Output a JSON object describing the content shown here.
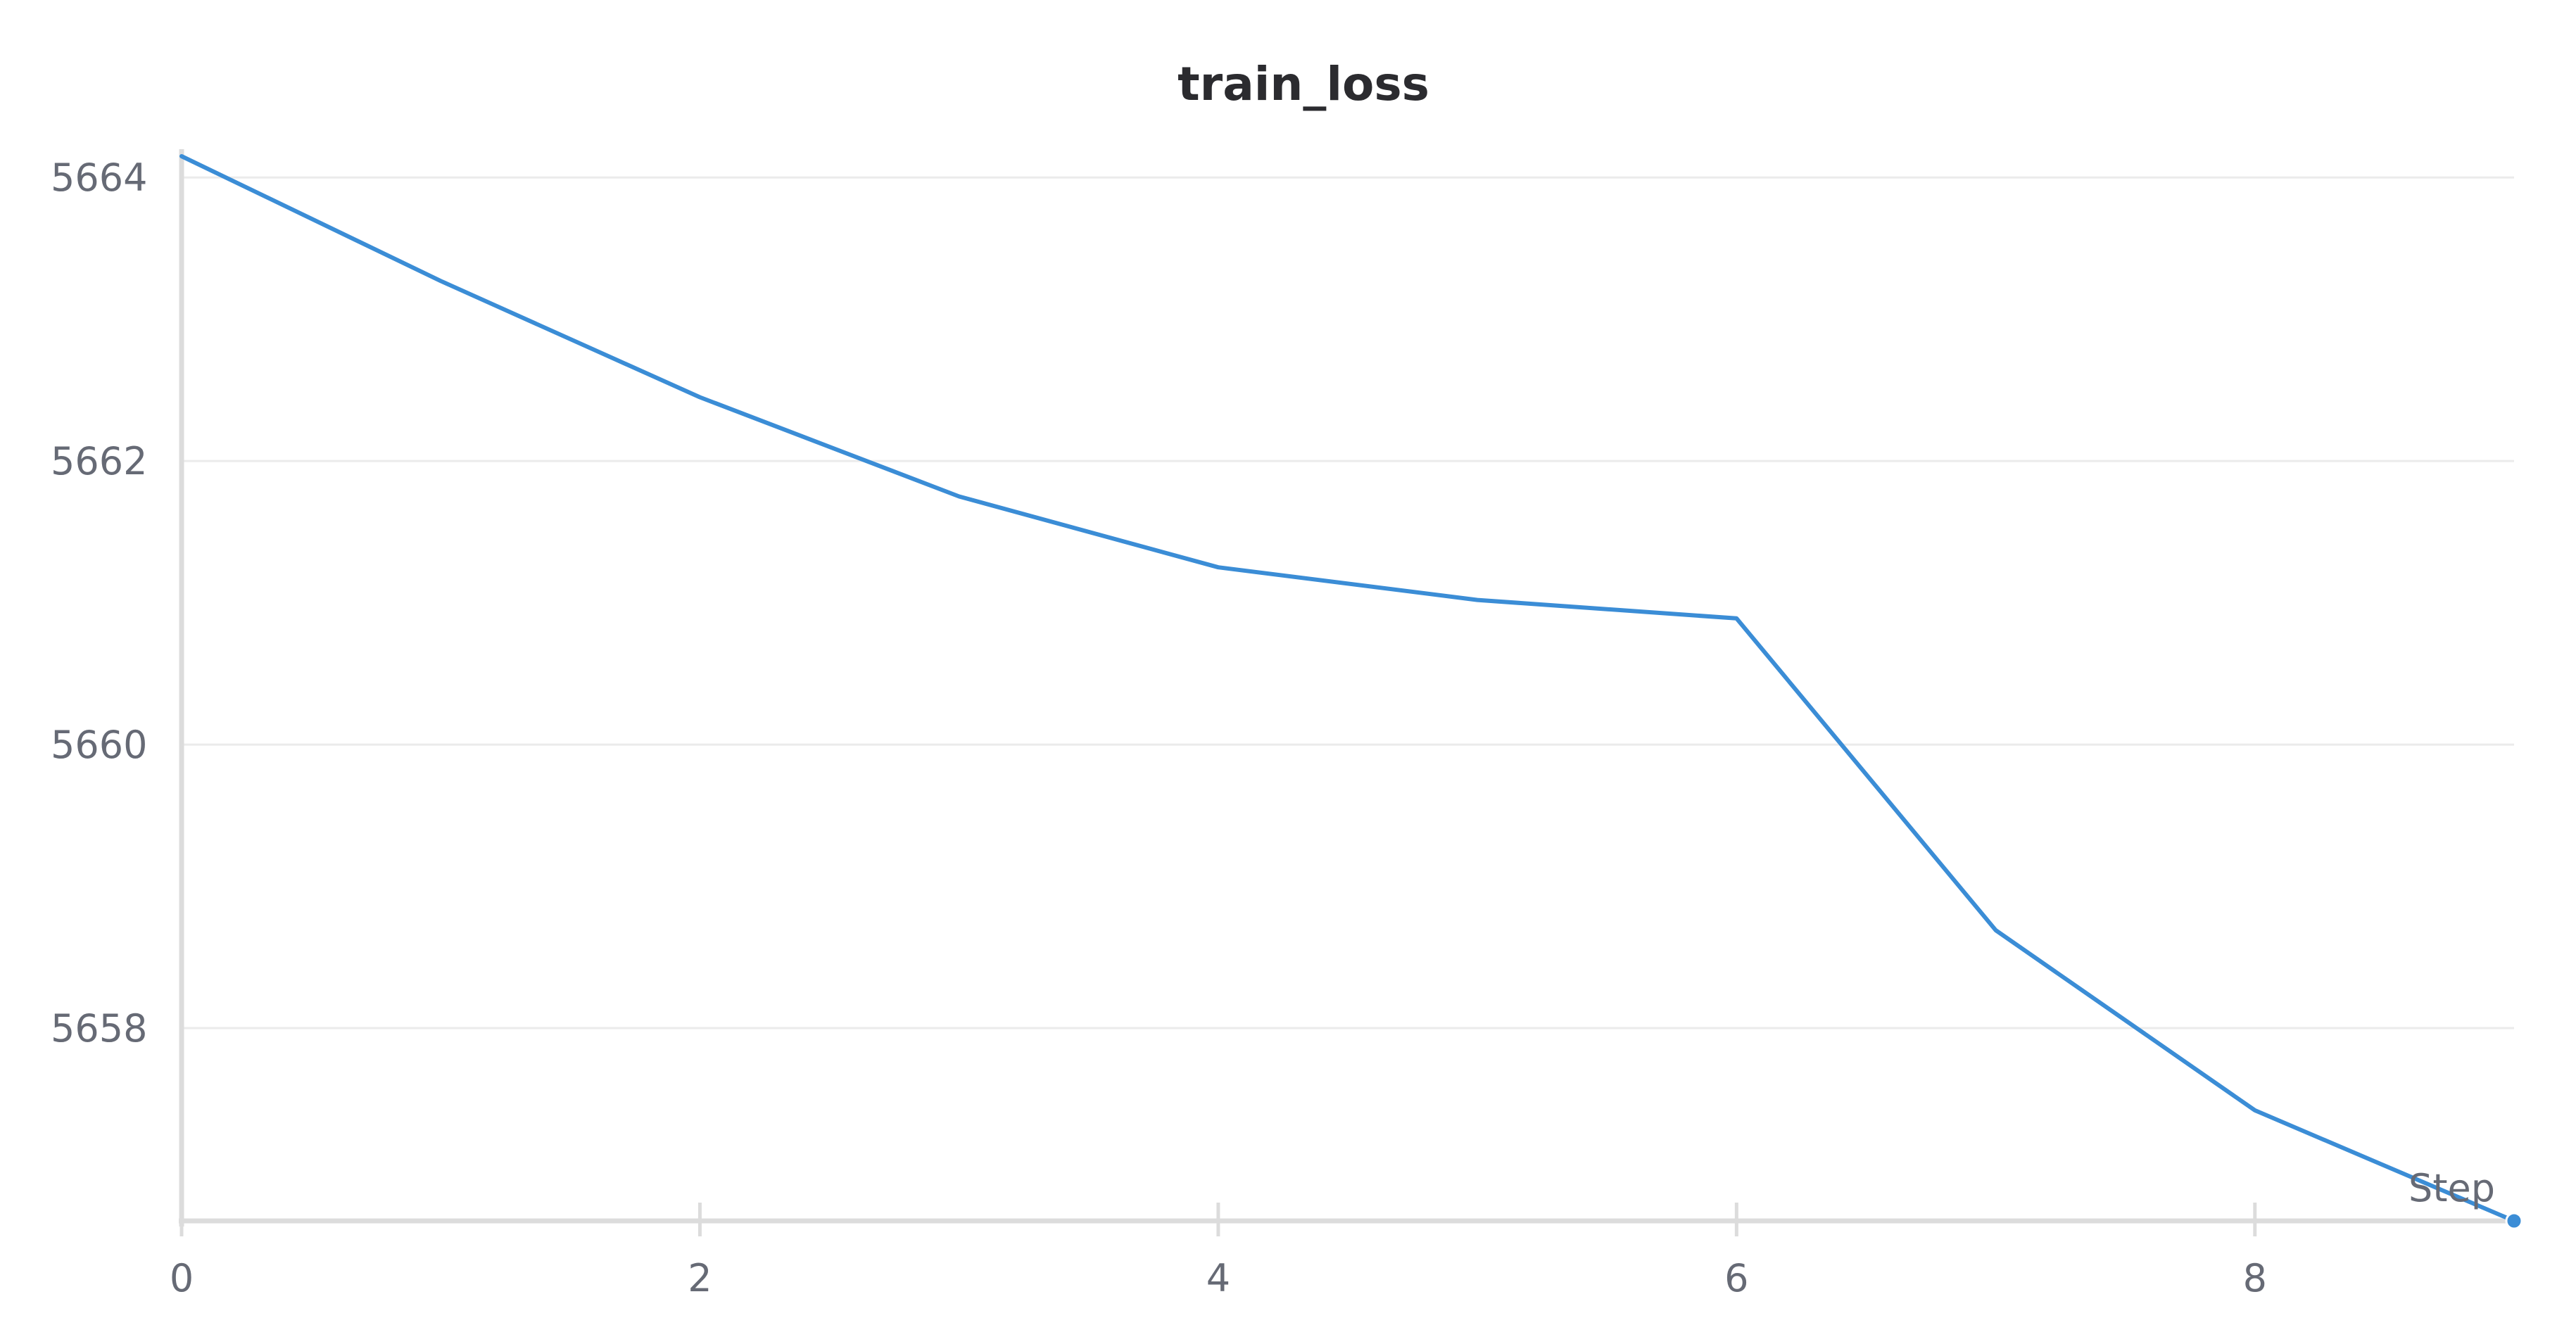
{
  "chart_data": {
    "type": "line",
    "title": "train_loss",
    "xlabel": "Step",
    "ylabel": "",
    "x": [
      0,
      1,
      2,
      3,
      4,
      5,
      6,
      7,
      8,
      9
    ],
    "series": [
      {
        "values": [
          5664.15,
          5663.27,
          5662.45,
          5661.75,
          5661.25,
          5661.02,
          5660.89,
          5658.69,
          5657.42,
          5656.64
        ],
        "color": "#3b8dd6"
      }
    ],
    "xlim": [
      0,
      9
    ],
    "ylim": [
      5656.64,
      5664.15
    ],
    "xticks": [
      0,
      2,
      4,
      6,
      8
    ],
    "yticks": [
      5658,
      5660,
      5662,
      5664
    ],
    "grid": true,
    "end_marker": true
  }
}
